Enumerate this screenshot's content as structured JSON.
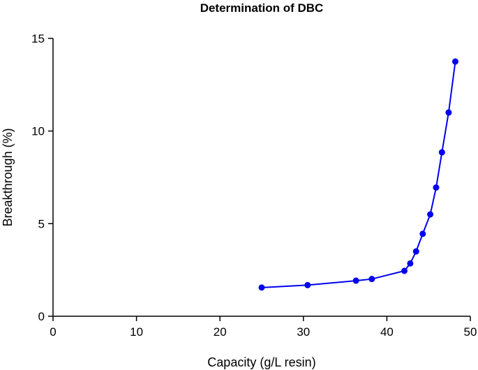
{
  "chart_data": {
    "type": "line",
    "title": "Determination of DBC",
    "xlabel": "Capacity (g/L resin)",
    "ylabel": "Breakthrough (%)",
    "xlim": [
      0,
      50
    ],
    "ylim": [
      0,
      15
    ],
    "xticks": [
      0,
      10,
      20,
      30,
      40,
      50
    ],
    "yticks": [
      0,
      5,
      10,
      15
    ],
    "grid": false,
    "series": [
      {
        "color": "#0000ee",
        "marker": "circle",
        "x": [
          25.0,
          30.5,
          36.3,
          38.2,
          42.1,
          42.8,
          43.5,
          44.3,
          45.2,
          45.9,
          46.6,
          47.4,
          48.2
        ],
        "y": [
          1.55,
          1.68,
          1.92,
          2.01,
          2.45,
          2.85,
          3.5,
          4.45,
          5.5,
          6.95,
          8.85,
          11.0,
          13.75
        ]
      }
    ]
  }
}
